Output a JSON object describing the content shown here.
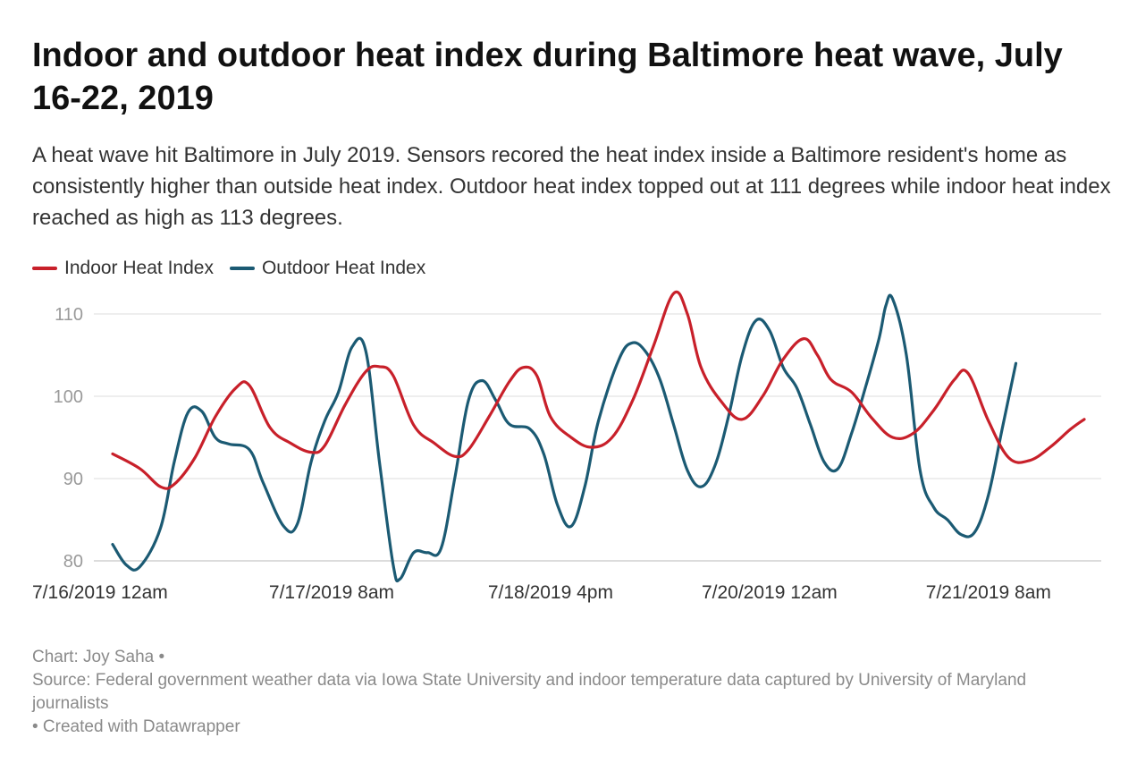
{
  "title": "Indoor and outdoor heat index during Baltimore heat wave, July 16-22, 2019",
  "subtitle": "A heat wave hit Baltimore in July 2019. Sensors recored the heat index inside a Baltimore resident's home as consistently higher than outside heat index. Outdoor heat index topped out at 111 degrees while indoor heat index reached as high as 113 degrees.",
  "footer": {
    "credit": "Chart: Joy Saha •",
    "source": "Source: Federal government weather data via Iowa State University and indoor temperature data captured by University of Maryland journalists",
    "created": " • Created with Datawrapper"
  },
  "chart_data": {
    "type": "line",
    "title": "Indoor and outdoor heat index during Baltimore heat wave, July 16-22, 2019",
    "xlabel": "",
    "ylabel": "",
    "x_unit": "hours since 7/16/2019 12am",
    "xlim": [
      0,
      142
    ],
    "ylim": [
      77,
      113
    ],
    "yticks": [
      80,
      90,
      100,
      110
    ],
    "xticks": [
      {
        "x": 0,
        "label": "7/16/2019 12am"
      },
      {
        "x": 32,
        "label": "7/17/2019 8am"
      },
      {
        "x": 64,
        "label": "7/18/2019 4pm"
      },
      {
        "x": 96,
        "label": "7/20/2019 12am"
      },
      {
        "x": 128,
        "label": "7/21/2019 8am"
      }
    ],
    "grid": true,
    "legend_position": "top-left",
    "series": [
      {
        "name": "Indoor Heat Index",
        "color": "#c8202a",
        "points": [
          [
            0,
            93
          ],
          [
            4,
            91.2
          ],
          [
            7,
            89
          ],
          [
            9,
            89.3
          ],
          [
            12,
            92.5
          ],
          [
            15,
            97.5
          ],
          [
            18,
            101
          ],
          [
            20,
            101.3
          ],
          [
            23,
            96.2
          ],
          [
            26,
            94.3
          ],
          [
            29,
            93.2
          ],
          [
            31,
            94
          ],
          [
            34,
            99
          ],
          [
            37,
            103
          ],
          [
            39,
            103.6
          ],
          [
            41,
            102.5
          ],
          [
            44,
            96.5
          ],
          [
            47,
            94.3
          ],
          [
            50,
            92.7
          ],
          [
            52,
            93.5
          ],
          [
            55,
            97.5
          ],
          [
            58,
            101.8
          ],
          [
            60,
            103.5
          ],
          [
            62,
            102.5
          ],
          [
            64,
            97.5
          ],
          [
            67,
            95
          ],
          [
            70,
            93.8
          ],
          [
            73,
            95
          ],
          [
            76,
            99.5
          ],
          [
            79,
            106
          ],
          [
            82,
            112.5
          ],
          [
            84,
            110
          ],
          [
            86,
            103.5
          ],
          [
            89,
            99.3
          ],
          [
            92,
            97.2
          ],
          [
            95,
            100
          ],
          [
            98,
            104.5
          ],
          [
            101,
            107
          ],
          [
            103,
            105
          ],
          [
            105,
            102
          ],
          [
            108,
            100.5
          ],
          [
            111,
            97.3
          ],
          [
            114,
            95
          ],
          [
            117,
            95.5
          ],
          [
            120,
            98.3
          ],
          [
            123,
            102
          ],
          [
            125,
            102.8
          ],
          [
            128,
            97
          ],
          [
            131,
            92.5
          ],
          [
            134,
            92.2
          ],
          [
            137,
            93.8
          ],
          [
            140,
            96
          ],
          [
            142,
            97.2
          ]
        ]
      },
      {
        "name": "Outdoor Heat Index",
        "color": "#1b5a73",
        "points": [
          [
            0,
            82
          ],
          [
            2,
            79.5
          ],
          [
            4,
            79.3
          ],
          [
            7,
            84
          ],
          [
            9,
            92
          ],
          [
            11,
            98
          ],
          [
            13,
            98.2
          ],
          [
            15,
            95
          ],
          [
            17,
            94.2
          ],
          [
            20,
            93.5
          ],
          [
            22,
            89.5
          ],
          [
            25,
            84.2
          ],
          [
            27,
            84.5
          ],
          [
            29,
            92
          ],
          [
            31,
            97
          ],
          [
            33,
            100.5
          ],
          [
            35,
            106
          ],
          [
            37,
            105.5
          ],
          [
            39,
            92
          ],
          [
            41,
            79.5
          ],
          [
            42,
            77.8
          ],
          [
            44,
            81
          ],
          [
            46,
            81
          ],
          [
            48,
            81.5
          ],
          [
            50,
            90
          ],
          [
            52,
            99.5
          ],
          [
            54,
            101.9
          ],
          [
            56,
            99.5
          ],
          [
            58,
            96.6
          ],
          [
            61,
            96
          ],
          [
            63,
            93
          ],
          [
            65,
            86.8
          ],
          [
            67,
            84.2
          ],
          [
            69,
            89
          ],
          [
            71,
            97
          ],
          [
            74,
            104.5
          ],
          [
            76,
            106.5
          ],
          [
            78,
            105.3
          ],
          [
            80,
            102
          ],
          [
            82,
            96.5
          ],
          [
            84,
            91
          ],
          [
            86,
            89
          ],
          [
            88,
            91.5
          ],
          [
            90,
            97.5
          ],
          [
            92,
            105
          ],
          [
            94,
            109.2
          ],
          [
            96,
            108
          ],
          [
            98,
            103.5
          ],
          [
            100,
            101
          ],
          [
            102,
            96.5
          ],
          [
            104,
            92
          ],
          [
            106,
            91.2
          ],
          [
            108,
            95.5
          ],
          [
            110,
            101
          ],
          [
            112,
            107
          ],
          [
            113,
            111
          ],
          [
            114,
            111.8
          ],
          [
            116,
            105
          ],
          [
            118,
            91
          ],
          [
            120,
            86.5
          ],
          [
            122,
            85
          ],
          [
            124,
            83.2
          ],
          [
            126,
            83.5
          ],
          [
            128,
            88
          ],
          [
            130,
            96
          ],
          [
            132,
            104
          ]
        ]
      }
    ]
  }
}
